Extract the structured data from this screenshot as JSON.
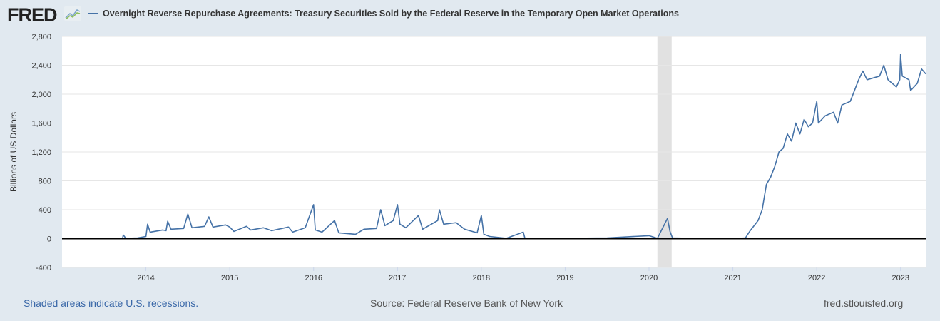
{
  "header": {
    "logo": "FRED",
    "logo_icon": "line-chart-icon"
  },
  "chart_data": {
    "type": "line",
    "title": "Overnight Reverse Repurchase Agreements: Treasury Securities Sold by the Federal Reserve in the Temporary Open Market Operations",
    "ylabel": "Billions of US Dollars",
    "xlabel": "",
    "ylim": [
      -400,
      2800
    ],
    "xlim": [
      2013.0,
      2023.3
    ],
    "yticks": [
      "2,800",
      "2,400",
      "2,000",
      "1,600",
      "1,200",
      "800",
      "400",
      "0",
      "-400"
    ],
    "ytick_values": [
      2800,
      2400,
      2000,
      1600,
      1200,
      800,
      400,
      0,
      -400
    ],
    "xticks": [
      "2014",
      "2015",
      "2016",
      "2017",
      "2018",
      "2019",
      "2020",
      "2021",
      "2022",
      "2023"
    ],
    "grid": true,
    "line_color": "#4572a7",
    "recession_color": "#e1e1e1",
    "recessions": [
      [
        2020.1,
        2020.27
      ]
    ],
    "series": [
      {
        "name": "Overnight Reverse Repurchase Agreements: Treasury Securities Sold by the Federal Reserve in the Temporary Open Market Operations",
        "x": [
          2013.72,
          2013.73,
          2013.76,
          2013.9,
          2014.0,
          2014.02,
          2014.05,
          2014.2,
          2014.24,
          2014.26,
          2014.3,
          2014.45,
          2014.5,
          2014.55,
          2014.7,
          2014.75,
          2014.8,
          2014.95,
          2015.0,
          2015.05,
          2015.2,
          2015.25,
          2015.4,
          2015.5,
          2015.7,
          2015.75,
          2015.9,
          2016.0,
          2016.02,
          2016.1,
          2016.25,
          2016.3,
          2016.5,
          2016.6,
          2016.75,
          2016.8,
          2016.85,
          2016.95,
          2017.0,
          2017.03,
          2017.1,
          2017.25,
          2017.3,
          2017.48,
          2017.5,
          2017.55,
          2017.7,
          2017.8,
          2017.95,
          2018.0,
          2018.03,
          2018.1,
          2018.3,
          2018.5,
          2018.52,
          2019.0,
          2019.5,
          2020.0,
          2020.1,
          2020.22,
          2020.25,
          2020.28,
          2020.5,
          2021.0,
          2021.15,
          2021.2,
          2021.3,
          2021.35,
          2021.4,
          2021.45,
          2021.5,
          2021.55,
          2021.6,
          2021.65,
          2021.7,
          2021.75,
          2021.8,
          2021.85,
          2021.9,
          2021.95,
          2022.0,
          2022.02,
          2022.1,
          2022.2,
          2022.25,
          2022.3,
          2022.4,
          2022.45,
          2022.5,
          2022.55,
          2022.6,
          2022.75,
          2022.8,
          2022.85,
          2022.95,
          2022.99,
          2023.0,
          2023.02,
          2023.1,
          2023.12,
          2023.2,
          2023.25,
          2023.3
        ],
        "y": [
          0,
          50,
          5,
          10,
          30,
          200,
          90,
          120,
          110,
          240,
          130,
          140,
          340,
          150,
          170,
          300,
          160,
          190,
          160,
          100,
          170,
          120,
          150,
          110,
          160,
          90,
          150,
          470,
          120,
          90,
          250,
          80,
          60,
          130,
          140,
          400,
          180,
          250,
          470,
          200,
          150,
          320,
          130,
          250,
          400,
          200,
          220,
          130,
          80,
          320,
          60,
          30,
          5,
          90,
          5,
          5,
          10,
          40,
          5,
          280,
          100,
          10,
          5,
          0,
          10,
          100,
          250,
          400,
          750,
          850,
          1000,
          1200,
          1250,
          1450,
          1350,
          1600,
          1450,
          1650,
          1550,
          1600,
          1900,
          1600,
          1700,
          1750,
          1600,
          1850,
          1900,
          2050,
          2200,
          2320,
          2200,
          2250,
          2400,
          2200,
          2100,
          2200,
          2550,
          2250,
          2200,
          2050,
          2150,
          2350,
          2280
        ]
      }
    ]
  },
  "footer": {
    "recession_note": "Shaded areas indicate U.S. recessions.",
    "source": "Source: Federal Reserve Bank of New York",
    "site": "fred.stlouisfed.org"
  }
}
